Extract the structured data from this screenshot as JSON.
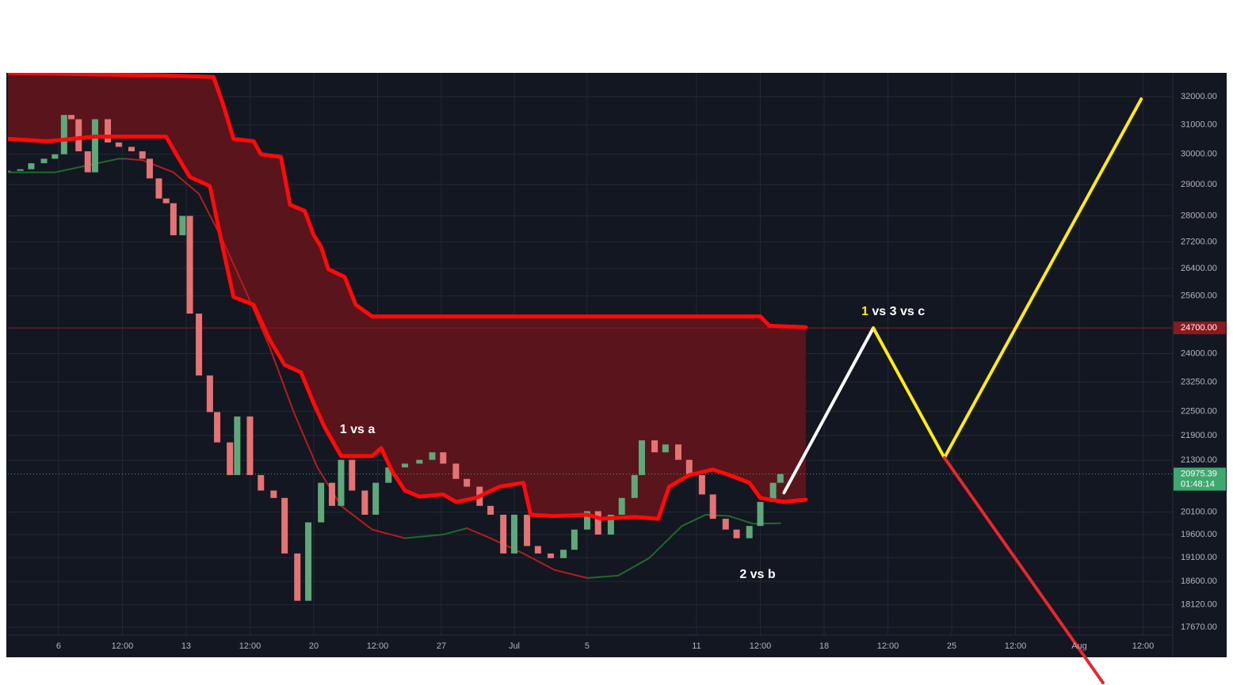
{
  "chart_data": {
    "type": "candlestick",
    "log_scale": true,
    "grid": true,
    "xlim": [
      -2.78,
      61.13
    ],
    "ylim": [
      17514,
      32862
    ],
    "xticks": [
      {
        "value": 0,
        "label": "6"
      },
      {
        "value": 3.5,
        "label": "12:00"
      },
      {
        "value": 7,
        "label": "13"
      },
      {
        "value": 10.5,
        "label": "12:00"
      },
      {
        "value": 14,
        "label": "20"
      },
      {
        "value": 17.5,
        "label": "12:00"
      },
      {
        "value": 21,
        "label": "27"
      },
      {
        "value": 25,
        "label": "Jul"
      },
      {
        "value": 29,
        "label": "5"
      },
      {
        "value": 35,
        "label": "11"
      },
      {
        "value": 38.5,
        "label": "12:00"
      },
      {
        "value": 42,
        "label": "18"
      },
      {
        "value": 45.5,
        "label": "12:00"
      },
      {
        "value": 49,
        "label": "25"
      },
      {
        "value": 52.5,
        "label": "12:00"
      },
      {
        "value": 56,
        "label": "Aug"
      },
      {
        "value": 59.5,
        "label": "12:00"
      }
    ],
    "yticks": [
      {
        "value": 32000,
        "label": "32000.00"
      },
      {
        "value": 31000,
        "label": "31000.00"
      },
      {
        "value": 30000,
        "label": "30000.00"
      },
      {
        "value": 29000,
        "label": "29000.00"
      },
      {
        "value": 28000,
        "label": "28000.00"
      },
      {
        "value": 27200,
        "label": "27200.00"
      },
      {
        "value": 26400,
        "label": "26400.00"
      },
      {
        "value": 25600,
        "label": "25600.00"
      },
      {
        "value": 24000,
        "label": "24000.00"
      },
      {
        "value": 23250,
        "label": "23250.00"
      },
      {
        "value": 22500,
        "label": "22500.00"
      },
      {
        "value": 21900,
        "label": "21900.00"
      },
      {
        "value": 21300,
        "label": "21300.00"
      },
      {
        "value": 20100,
        "label": "20100.00"
      },
      {
        "value": 19600,
        "label": "19600.00"
      },
      {
        "value": 19100,
        "label": "19100.00"
      },
      {
        "value": 18600,
        "label": "18600.00"
      },
      {
        "value": 18120,
        "label": "18120.00"
      },
      {
        "value": 17670,
        "label": "17670.00"
      }
    ],
    "candles": {
      "up_color": "#5fa87a",
      "down_color": "#e57373",
      "x": [
        -2.8,
        -2.1,
        -1.5,
        -0.8,
        -0.2,
        0.3,
        0.7,
        1.1,
        1.6,
        2.0,
        2.7,
        3.3,
        4.0,
        4.6,
        5.0,
        5.5,
        5.9,
        6.3,
        6.8,
        7.2,
        7.7,
        8.3,
        8.7,
        9.4,
        9.8,
        10.5,
        11.1,
        11.8,
        12.4,
        13.1,
        13.7,
        14.4,
        15.0,
        15.5,
        16.1,
        16.8,
        17.4,
        18.1,
        19.0,
        19.8,
        20.5,
        21.1,
        21.8,
        22.4,
        23.1,
        23.7,
        24.4,
        25.0,
        25.7,
        26.3,
        27.0,
        27.7,
        28.3,
        29.0,
        29.6,
        30.3,
        30.9,
        31.6,
        32.0,
        32.7,
        33.3,
        34.0,
        34.6,
        35.3,
        35.9,
        36.6,
        37.2,
        37.9,
        38.5,
        39.2,
        39.6
      ],
      "close": [
        29450,
        29500,
        29700,
        29850,
        30000,
        31350,
        31200,
        30100,
        29400,
        31200,
        30400,
        30250,
        30100,
        29850,
        29200,
        28550,
        28400,
        27400,
        28000,
        25100,
        23420,
        22480,
        21730,
        20950,
        22370,
        20950,
        20590,
        20420,
        19190,
        18200,
        19870,
        20770,
        20240,
        21310,
        20590,
        20040,
        20770,
        21130,
        21220,
        21310,
        21490,
        21220,
        20860,
        20680,
        20240,
        20040,
        19190,
        20040,
        19350,
        19190,
        19090,
        19270,
        19710,
        20120,
        19600,
        20040,
        20420,
        20950,
        21780,
        21490,
        21680,
        21310,
        20950,
        20500,
        19950,
        19710,
        19520,
        19790,
        20330,
        20770,
        20975.39
      ]
    },
    "band": {
      "fill": "#5a141b",
      "upper": {
        "color": "#ff0a0a",
        "x": [
          -2.8,
          5.5,
          8.5,
          9.0,
          9.6,
          10.7,
          11.1,
          12.2,
          12.7,
          13.5,
          14.0,
          14.4,
          14.8,
          15.7,
          16.3,
          17.2,
          38.5,
          39.0,
          41.0
        ],
        "values": [
          32862,
          32770,
          32710,
          31780,
          30520,
          30440,
          30000,
          29910,
          28350,
          28160,
          27400,
          27050,
          26380,
          26150,
          25350,
          25020,
          25020,
          24760,
          24720
        ]
      },
      "lower": {
        "color": "#ff0a0a",
        "x": [
          -2.8,
          -0.6,
          2.0,
          5.9,
          6.6,
          7.2,
          8.3,
          9.0,
          9.6,
          10.7,
          11.6,
          12.4,
          13.3,
          14.0,
          14.6,
          15.5,
          17.2,
          17.7,
          18.3,
          19.0,
          19.8,
          21.1,
          21.8,
          22.9,
          24.2,
          25.5,
          25.9,
          27.2,
          29.0,
          29.8,
          31.6,
          32.9,
          33.5,
          34.6,
          35.9,
          36.8,
          37.9,
          38.5,
          39.8,
          41.0
        ],
        "values": [
          30520,
          30440,
          30600,
          30600,
          29850,
          29250,
          28950,
          27050,
          25570,
          25350,
          24360,
          23700,
          23500,
          22700,
          22100,
          21400,
          21400,
          21590,
          21040,
          20590,
          20450,
          20500,
          20330,
          20420,
          20680,
          20770,
          20040,
          20010,
          20040,
          19950,
          19990,
          19950,
          20680,
          20950,
          21080,
          20950,
          20770,
          20420,
          20330,
          20380
        ]
      }
    },
    "ma": {
      "x": [
        -2.8,
        -0.2,
        3.3,
        3.7,
        4.6,
        6.3,
        7.7,
        9.0,
        10.3,
        11.6,
        12.9,
        14.2,
        15.5,
        17.2,
        19.0,
        21.1,
        22.4,
        23.7,
        25.5,
        27.2,
        29.0,
        30.7,
        32.4,
        34.2,
        35.5,
        36.8,
        38.1,
        39.6
      ],
      "series": [
        {
          "color": "#1e6b2a",
          "values": [
            29400,
            29400,
            29850,
            29850,
            null,
            null,
            null,
            null,
            null,
            null,
            null,
            null,
            null,
            null,
            19520,
            19600,
            19740,
            null,
            null,
            null,
            18670,
            18720,
            19090,
            19790,
            20040,
            20010,
            19840,
            19850
          ]
        },
        {
          "color": "#b71c1c",
          "values": [
            null,
            null,
            null,
            29850,
            29800,
            29400,
            28700,
            27250,
            25700,
            24150,
            22480,
            21130,
            20240,
            19710,
            19520,
            null,
            19740,
            19520,
            19190,
            18840,
            18670,
            null,
            null,
            null,
            null,
            null,
            null,
            null
          ]
        }
      ]
    },
    "projections": [
      {
        "color": "#ffffff",
        "x": [
          39.8,
          44.7
        ],
        "values": [
          20540,
          24700
        ]
      },
      {
        "color": "#ffeb10",
        "x": [
          44.7,
          48.6,
          59.4
        ],
        "values": [
          24700,
          21360,
          31915
        ]
      },
      {
        "color": "#e8262b",
        "x": [
          48.6,
          57.3
        ],
        "values": [
          21360,
          16605
        ]
      }
    ],
    "price_line": {
      "value": 24700,
      "label": "24700.00",
      "color": "#8b1a1f"
    },
    "last_price": {
      "value": 20975.39,
      "label": "20975.39",
      "countdown": "01:48:14",
      "color": "#3fa86e"
    },
    "annotations": [
      {
        "text": "1 vs a"
      },
      {
        "highlight": "1",
        "text": "vs 3 vs c",
        "highlight_color": "#ffeb10"
      },
      {
        "text": "2 vs b"
      }
    ]
  }
}
